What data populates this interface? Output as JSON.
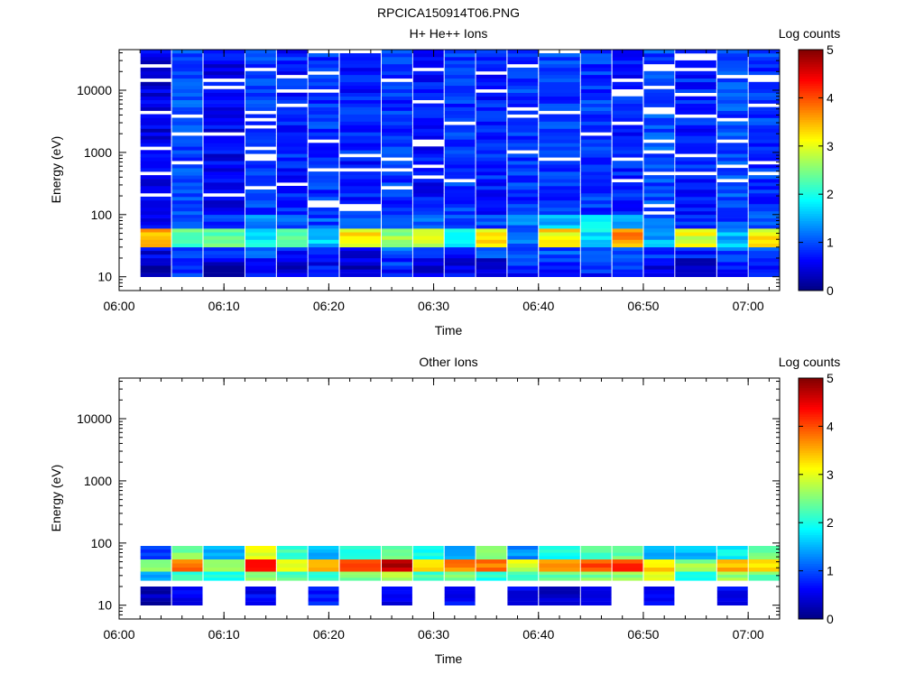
{
  "figure": {
    "title": "RPCICA150914T06.PNG"
  },
  "chart_data": [
    {
      "type": "heatmap",
      "title": "H+ He++ Ions",
      "xlabel": "Time",
      "ylabel": "Energy (eV)",
      "x_ticks": [
        "06:00",
        "06:10",
        "06:20",
        "06:30",
        "06:40",
        "06:50",
        "07:00"
      ],
      "x_range": [
        "06:00",
        "07:03"
      ],
      "y_scale": "log",
      "y_ticks": [
        10,
        100,
        1000,
        10000
      ],
      "y_range": [
        6,
        45000
      ],
      "colorbar": {
        "label": "Log counts",
        "ticks": [
          0,
          1,
          2,
          3,
          4,
          5
        ],
        "range": [
          0,
          5
        ]
      },
      "time_columns_start": [
        "06:02",
        "06:05",
        "06:08",
        "06:12",
        "06:15",
        "06:18",
        "06:21",
        "06:25",
        "06:28",
        "06:31",
        "06:34",
        "06:37",
        "06:40",
        "06:44",
        "06:47",
        "06:50",
        "06:53",
        "06:57",
        "07:00"
      ],
      "time_columns_end": "07:03",
      "energy_bands": [
        {
          "range": "10-20 eV",
          "log_counts": [
            0.3,
            0.8,
            0.4,
            0.7,
            0.5,
            0.6,
            0.4,
            0.8,
            0.5,
            0.5,
            0.4,
            0.8,
            0.8,
            0.8,
            0.8,
            0.6,
            0.4,
            0.8,
            0.6
          ]
        },
        {
          "range": "20-30 eV",
          "log_counts": [
            0.5,
            1.0,
            0.7,
            1.0,
            0.8,
            0.7,
            0.6,
            1.0,
            0.7,
            0.6,
            0.9,
            1.0,
            1.0,
            1.0,
            1.1,
            0.8,
            0.7,
            1.0,
            0.9
          ]
        },
        {
          "range": "30-60 eV",
          "log_counts": [
            3.5,
            2.2,
            2.3,
            1.8,
            2.5,
            1.6,
            3.2,
            2.6,
            2.8,
            1.9,
            3.2,
            1.2,
            3.2,
            1.8,
            3.6,
            1.5,
            3.0,
            1.5,
            3.1
          ]
        },
        {
          "range": "60-100 eV",
          "log_counts": [
            0.6,
            1.1,
            0.9,
            1.2,
            1.0,
            1.0,
            1.0,
            1.2,
            1.0,
            1.0,
            1.0,
            1.2,
            1.5,
            1.7,
            1.5,
            1.0,
            1.0,
            1.0,
            1.0
          ]
        },
        {
          "range": "100-45000 eV",
          "log_counts": [
            0.5,
            1.0,
            0.6,
            0.9,
            0.8,
            0.9,
            0.8,
            0.9,
            0.7,
            0.9,
            0.8,
            0.9,
            0.9,
            0.9,
            0.8,
            1.0,
            0.8,
            1.0,
            0.9
          ]
        }
      ]
    },
    {
      "type": "heatmap",
      "title": "Other Ions",
      "xlabel": "Time",
      "ylabel": "Energy (eV)",
      "x_ticks": [
        "06:00",
        "06:10",
        "06:20",
        "06:30",
        "06:40",
        "06:50",
        "07:00"
      ],
      "x_range": [
        "06:00",
        "07:03"
      ],
      "y_scale": "log",
      "y_ticks": [
        10,
        100,
        1000,
        10000
      ],
      "y_range": [
        6,
        45000
      ],
      "colorbar": {
        "label": "Log counts",
        "ticks": [
          0,
          1,
          2,
          3,
          4,
          5
        ],
        "range": [
          0,
          5
        ]
      },
      "time_columns_start": [
        "06:02",
        "06:05",
        "06:08",
        "06:12",
        "06:15",
        "06:18",
        "06:21",
        "06:25",
        "06:28",
        "06:31",
        "06:34",
        "06:37",
        "06:40",
        "06:44",
        "06:47",
        "06:50",
        "06:53",
        "06:57",
        "07:00"
      ],
      "time_columns_end": "07:03",
      "energy_bands": [
        {
          "range": "10-20 eV",
          "log_counts": [
            0.3,
            0.6,
            null,
            0.6,
            null,
            0.7,
            null,
            0.6,
            null,
            0.6,
            null,
            0.5,
            0.4,
            0.4,
            null,
            0.6,
            null,
            0.6,
            null
          ]
        },
        {
          "range": "25-35 eV",
          "log_counts": [
            1.5,
            2.2,
            2.0,
            2.5,
            2.3,
            2.2,
            2.5,
            2.8,
            2.2,
            2.5,
            2.0,
            2.3,
            2.4,
            2.5,
            2.6,
            2.9,
            2.0,
            2.6,
            2.4
          ]
        },
        {
          "range": "35-55 eV",
          "log_counts": [
            2.5,
            3.8,
            2.7,
            4.3,
            2.9,
            3.5,
            3.9,
            4.7,
            3.3,
            3.7,
            3.8,
            2.9,
            3.7,
            4.0,
            4.1,
            3.3,
            2.6,
            3.5,
            3.2
          ]
        },
        {
          "range": "55-90 eV",
          "log_counts": [
            0.8,
            2.5,
            1.4,
            3.0,
            2.2,
            1.5,
            2.0,
            2.3,
            2.0,
            1.5,
            2.6,
            1.3,
            2.0,
            2.2,
            2.4,
            1.6,
            1.5,
            1.9,
            2.4
          ]
        }
      ]
    }
  ]
}
